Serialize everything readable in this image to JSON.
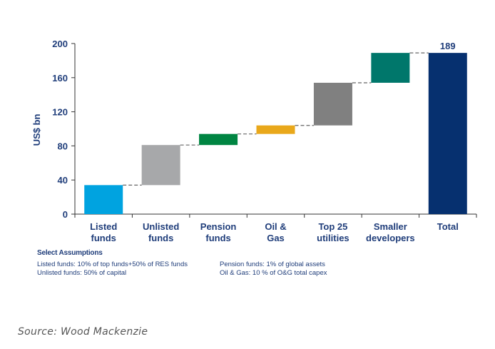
{
  "chart_data": {
    "type": "waterfall",
    "title": "",
    "xlabel": "",
    "ylabel": "US$ bn",
    "ylim": [
      0,
      200
    ],
    "yticks": [
      0,
      40,
      80,
      120,
      160,
      200
    ],
    "grid": false,
    "categories": [
      "Listed\nfunds",
      "Unlisted\nfunds",
      "Pension\nfunds",
      "Oil &\nGas",
      "Top 25\nutilities",
      "Smaller\ndevelopers",
      "Total"
    ],
    "bars": [
      {
        "name": "Listed funds",
        "start": 0,
        "end": 34,
        "color": "#00a3e0"
      },
      {
        "name": "Unlisted funds",
        "start": 34,
        "end": 81,
        "color": "#a7a8aa"
      },
      {
        "name": "Pension funds",
        "start": 81,
        "end": 94,
        "color": "#008542"
      },
      {
        "name": "Oil & Gas",
        "start": 94,
        "end": 104,
        "color": "#e9a81b"
      },
      {
        "name": "Top 25 utilities",
        "start": 104,
        "end": 154,
        "color": "#808080"
      },
      {
        "name": "Smaller developers",
        "start": 154,
        "end": 189,
        "color": "#00776b"
      },
      {
        "name": "Total",
        "start": 0,
        "end": 189,
        "color": "#06306f"
      }
    ],
    "data_labels": [
      {
        "category": "Total",
        "text": "189"
      }
    ],
    "connectors": "dashed"
  },
  "assumptions": {
    "title": "Select Assumptions",
    "col1": [
      "Listed funds: 10% of top funds+50% of RES funds",
      "Unlisted funds: 50% of capital"
    ],
    "col2": [
      "Pension funds: 1% of global assets",
      "Oil & Gas: 10 % of O&G total capex"
    ]
  },
  "source": "Source: Wood Mackenzie"
}
